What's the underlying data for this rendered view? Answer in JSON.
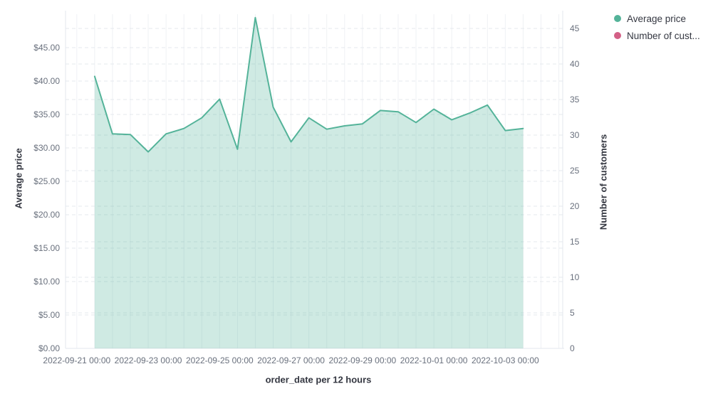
{
  "chart_data": {
    "type": "area",
    "title": "",
    "xlabel": "order_date per 12 hours",
    "ylabel_left": "Average price",
    "ylabel_right": "Number of customers",
    "grid": true,
    "legend_position": "top-right",
    "x_ticks": [
      "2022-09-21 00:00",
      "2022-09-23 00:00",
      "2022-09-25 00:00",
      "2022-09-27 00:00",
      "2022-09-29 00:00",
      "2022-10-01 00:00",
      "2022-10-03 00:00"
    ],
    "left_axis": {
      "title": "Average price",
      "tick_labels": [
        "$0.00",
        "$5.00",
        "$10.00",
        "$15.00",
        "$20.00",
        "$25.00",
        "$30.00",
        "$35.00",
        "$40.00",
        "$45.00"
      ],
      "min": 0,
      "max": 50,
      "tick_interval": 5,
      "format": "currency"
    },
    "right_axis": {
      "title": "Number of customers",
      "tick_labels": [
        "0",
        "5",
        "10",
        "15",
        "20",
        "25",
        "30",
        "35",
        "40",
        "45"
      ],
      "min": 0,
      "max": 47,
      "tick_interval": 5
    },
    "x": [
      "2022-09-21 12:00",
      "2022-09-22 00:00",
      "2022-09-22 12:00",
      "2022-09-23 00:00",
      "2022-09-23 12:00",
      "2022-09-24 00:00",
      "2022-09-24 12:00",
      "2022-09-25 00:00",
      "2022-09-25 12:00",
      "2022-09-26 00:00",
      "2022-09-26 12:00",
      "2022-09-27 00:00",
      "2022-09-27 12:00",
      "2022-09-28 00:00",
      "2022-09-28 12:00",
      "2022-09-29 00:00",
      "2022-09-29 12:00",
      "2022-09-30 00:00",
      "2022-09-30 12:00",
      "2022-10-01 00:00",
      "2022-10-01 12:00",
      "2022-10-02 00:00",
      "2022-10-02 12:00",
      "2022-10-03 00:00",
      "2022-10-03 12:00"
    ],
    "series": [
      {
        "name": "Average price",
        "type": "area",
        "axis": "left",
        "color": "#54B399",
        "fill_opacity": 0.28,
        "values": [
          40.7,
          32.1,
          32.0,
          29.4,
          32.1,
          32.9,
          34.5,
          37.3,
          29.8,
          49.5,
          36.1,
          30.9,
          34.5,
          32.8,
          33.3,
          33.6,
          35.6,
          35.4,
          33.8,
          35.8,
          34.2,
          35.2,
          36.4,
          32.6,
          32.9
        ]
      },
      {
        "name": "Number of customers",
        "type": "line",
        "axis": "right",
        "color": "#D36086",
        "values": []
      }
    ],
    "legend": [
      {
        "label": "Average price",
        "color": "#54B399"
      },
      {
        "label": "Number of cust...",
        "color": "#D36086"
      }
    ]
  },
  "colors": {
    "background": "#FFFFFF",
    "axis_line": "#E3E7EE",
    "grid_dashed": "#E4E8EE",
    "grid_vertical": "#EFF1F4",
    "tick_text": "#69707D",
    "axis_title_text": "#343741"
  }
}
